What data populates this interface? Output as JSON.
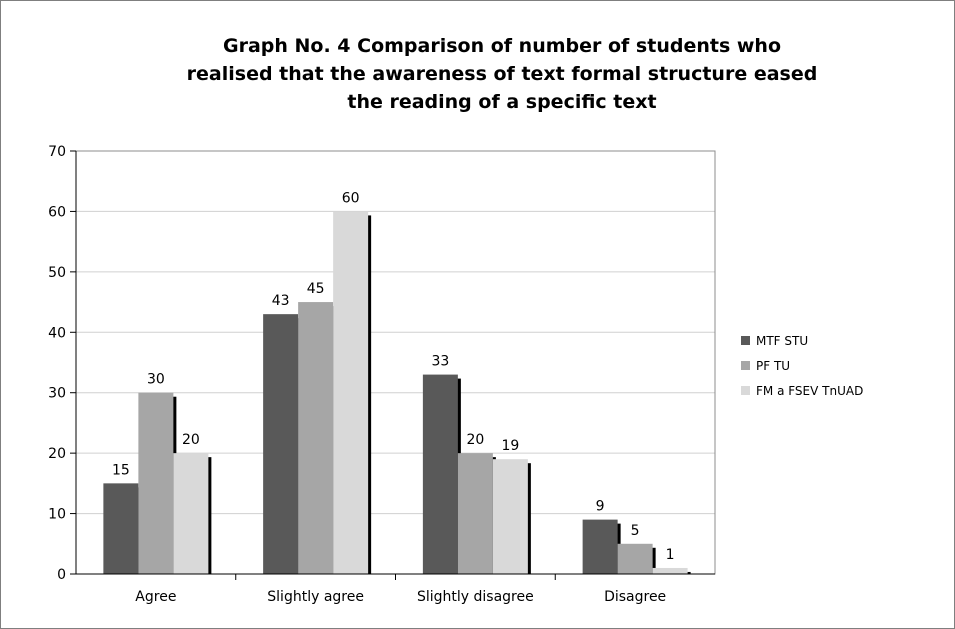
{
  "chart_data": {
    "type": "bar",
    "title_lines": [
      "Graph No. 4 Comparison of number of students who",
      "realised that the awareness of text formal structure eased",
      "the reading of a specific text"
    ],
    "categories": [
      "Agree",
      "Slightly agree",
      "Slightly disagree",
      "Disagree"
    ],
    "series": [
      {
        "name": "MTF STU",
        "values": [
          15,
          43,
          33,
          9
        ],
        "color": "#595959"
      },
      {
        "name": "PF TU",
        "values": [
          30,
          45,
          20,
          5
        ],
        "color": "#a6a6a6"
      },
      {
        "name": "FM a FSEV TnUAD",
        "values": [
          20,
          60,
          19,
          1
        ],
        "color": "#d9d9d9"
      }
    ],
    "y_ticks": [
      "0",
      "10",
      "20",
      "30",
      "40",
      "50",
      "60",
      "70"
    ],
    "ylim": [
      0,
      70
    ],
    "grid": true,
    "legend_position": "right"
  }
}
